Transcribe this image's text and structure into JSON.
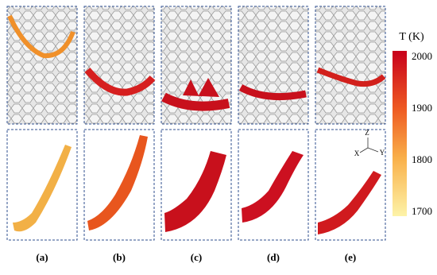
{
  "panels": [
    {
      "label": "(a)"
    },
    {
      "label": "(b)"
    },
    {
      "label": "(c)"
    },
    {
      "label": "(d)"
    },
    {
      "label": "(e)"
    }
  ],
  "colorbar": {
    "title": "T (K)",
    "ticks": [
      1700,
      1800,
      1900,
      2000
    ]
  },
  "axes_triad": {
    "z": "Z",
    "x": "X",
    "y": "Y"
  }
}
